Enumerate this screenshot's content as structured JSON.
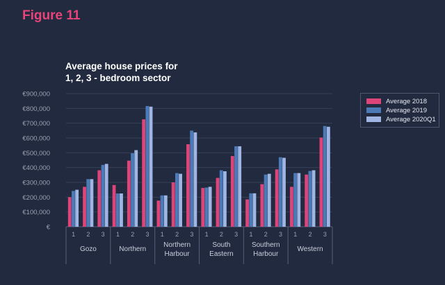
{
  "figure_label": "Figure 11",
  "chart_title_line1": "Average house prices for",
  "chart_title_line2": "1, 2, 3 - bedroom sector",
  "colors": {
    "background": "#222a3f",
    "accent": "#e8447a",
    "series": [
      "#dd4479",
      "#4b7ab6",
      "#9fb5e3"
    ],
    "grid": "#36405a",
    "axis_text": "#9aa1b3"
  },
  "chart_data": {
    "type": "bar",
    "title": "Average house prices for 1, 2, 3 - bedroom sector",
    "y_ticks": [
      "€",
      "€100,000",
      "€200,000",
      "€300,000",
      "€400,000",
      "€500,000",
      "€600,000",
      "€700,000",
      "€800,000",
      "€900,000"
    ],
    "ylim": [
      0,
      900000
    ],
    "grid": true,
    "legend_position": "right",
    "groups": [
      {
        "name": "Gozo",
        "label_lines": [
          "Gozo"
        ],
        "categories": [
          "1",
          "2",
          "3"
        ]
      },
      {
        "name": "Northern",
        "label_lines": [
          "Northern"
        ],
        "categories": [
          "1",
          "2",
          "3"
        ]
      },
      {
        "name": "Northern Harbour",
        "label_lines": [
          "Northern",
          "Harbour"
        ],
        "categories": [
          "1",
          "2",
          "3"
        ]
      },
      {
        "name": "South Eastern",
        "label_lines": [
          "South",
          "Eastern"
        ],
        "categories": [
          "1",
          "2",
          "3"
        ]
      },
      {
        "name": "Southern Harbour",
        "label_lines": [
          "Southern",
          "Harbour"
        ],
        "categories": [
          "1",
          "2",
          "3"
        ]
      },
      {
        "name": "Western",
        "label_lines": [
          "Western"
        ],
        "categories": [
          "1",
          "2",
          "3"
        ]
      }
    ],
    "series": [
      {
        "name": "Average 2018",
        "values": [
          200000,
          270000,
          382000,
          282000,
          447000,
          726000,
          177000,
          300000,
          558000,
          262000,
          330000,
          478000,
          185000,
          288000,
          388000,
          270000,
          353000,
          603000
        ]
      },
      {
        "name": "Average 2019",
        "values": [
          242000,
          322000,
          418000,
          225000,
          497000,
          816000,
          212000,
          363000,
          650000,
          265000,
          382000,
          544000,
          226000,
          353000,
          470000,
          363000,
          377000,
          681000
        ]
      },
      {
        "name": "Average 2020Q1",
        "values": [
          250000,
          322000,
          425000,
          225000,
          518000,
          812000,
          212000,
          358000,
          638000,
          270000,
          375000,
          544000,
          226000,
          358000,
          466000,
          363000,
          382000,
          676000
        ]
      }
    ]
  }
}
